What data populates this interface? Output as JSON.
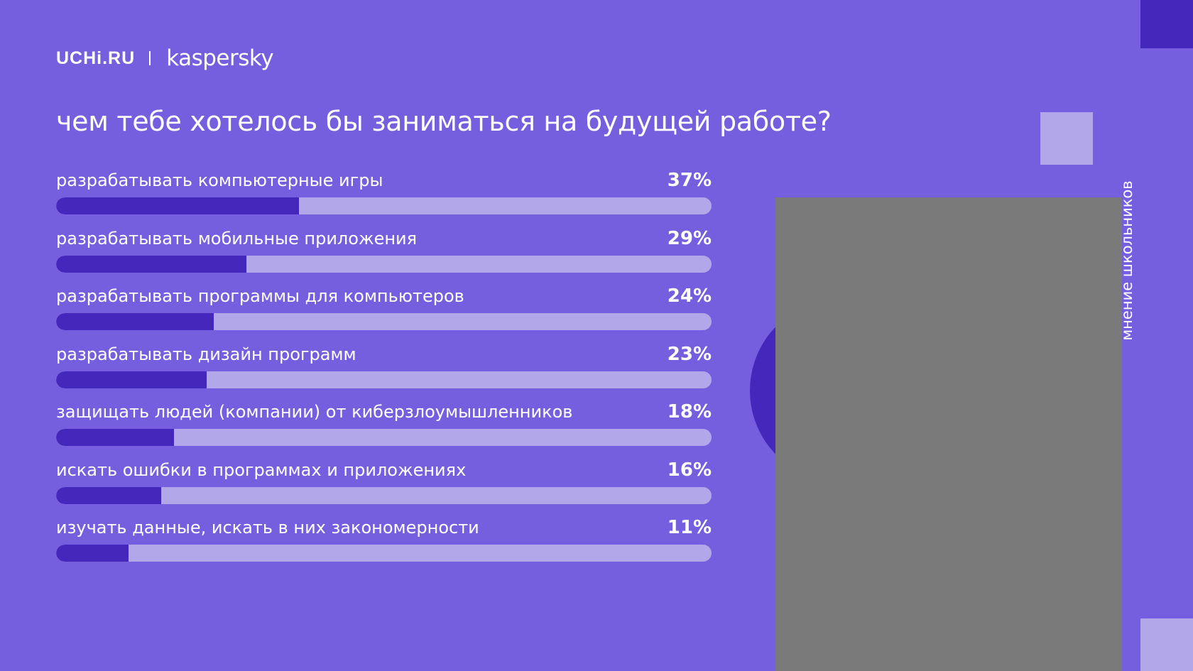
{
  "brand": {
    "uchi": "UCHi.RU",
    "kaspersky": "kaspersky"
  },
  "title": "чем тебе хотелось бы заниматься на будущей работе?",
  "side_caption": "мнение школьников",
  "colors": {
    "background": "#765FDE",
    "bar_fill": "#4428BC",
    "bar_track": "#B2A7E9",
    "text": "#FFFFFF"
  },
  "chart_data": {
    "type": "bar",
    "orientation": "horizontal",
    "title": "чем тебе хотелось бы заниматься на будущей работе?",
    "categories": [
      "разрабатывать компьютерные игры",
      "разрабатывать мобильные приложения",
      "разрабатывать программы для компьютеров",
      "разрабатывать дизайн программ",
      "защищать людей (компании) от киберзлоумышленников",
      "искать ошибки в программах и приложениях",
      "изучать данные, искать в них закономерности"
    ],
    "values": [
      37,
      29,
      24,
      23,
      18,
      16,
      11
    ],
    "value_labels": [
      "37%",
      "29%",
      "24%",
      "23%",
      "18%",
      "16%",
      "11%"
    ],
    "xlim": [
      0,
      100
    ],
    "grid": false,
    "legend": "none"
  }
}
